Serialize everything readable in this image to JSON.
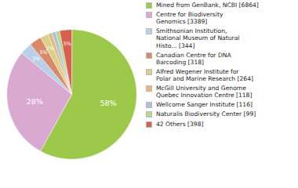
{
  "chart_data": {
    "type": "pie",
    "categories": [
      "Mined from GenBank, NCBI [6864]",
      "Centre for Biodiversity\nGenomics [3389]",
      "Smithsonian Institution,\nNational Museum of Natural\nHisto... [344]",
      "Canadian Centre for DNA\nBarcoding [318]",
      "Alfred Wegener Institute for\nPolar and Marine Research [264]",
      "McGill University and Genome\nQuebec Innovation Centre [118]",
      "Wellcome Sanger Institute [116]",
      "Naturalis Biodiversity Center [99]",
      "42 Others [398]"
    ],
    "values": [
      58,
      28,
      3,
      3,
      2,
      1,
      1,
      1,
      3
    ],
    "value_labels": [
      "58%",
      "28%",
      "3%",
      "3%",
      "2%",
      null,
      null,
      null,
      "3%"
    ],
    "data_labels": true,
    "colors": [
      "#9dc94a",
      "#d9a9d1",
      "#b8d0e8",
      "#d9896a",
      "#d9d08a",
      "#e8b87a",
      "#aac4e0",
      "#b8d88a",
      "#d96050"
    ],
    "legend": "right"
  }
}
